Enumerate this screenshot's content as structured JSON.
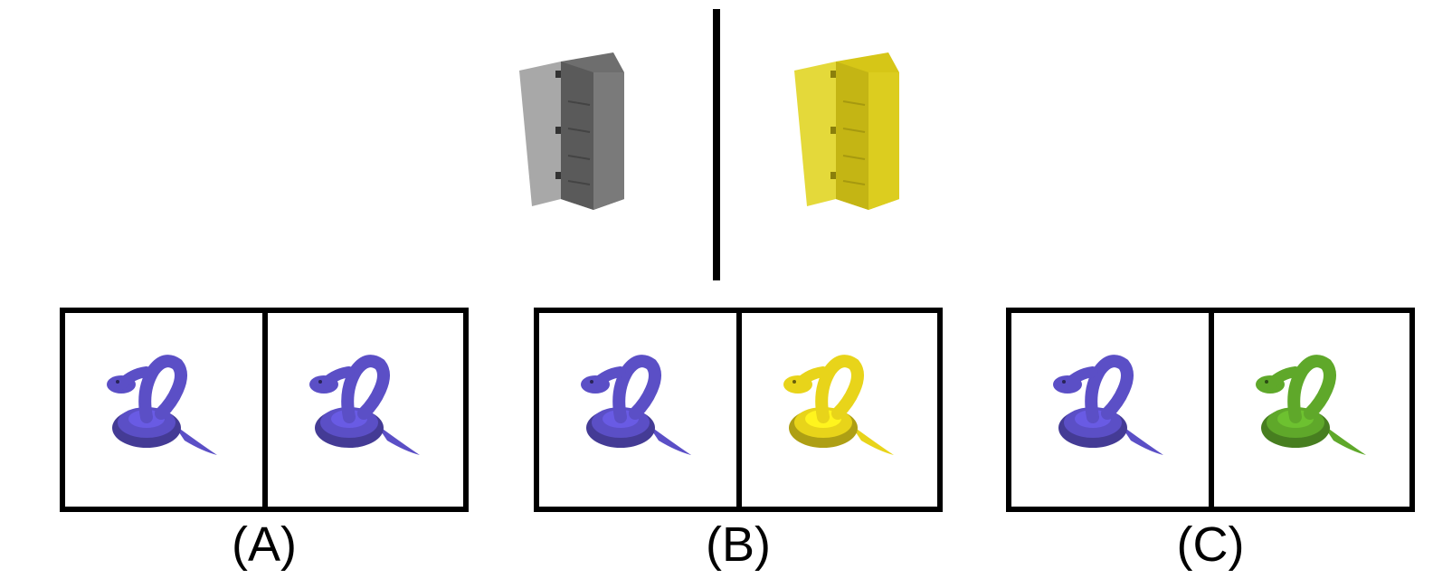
{
  "example": {
    "source_color": "#8c8c8c",
    "target_color": "#e6d81a",
    "object_icon": "cabinet-icon"
  },
  "options": [
    {
      "label": "(A)",
      "left_color": "#5b4fc6",
      "right_color": "#5b4fc6",
      "object_icon": "snake-icon"
    },
    {
      "label": "(B)",
      "left_color": "#5b4fc6",
      "right_color": "#e8d41a",
      "object_icon": "snake-icon"
    },
    {
      "label": "(C)",
      "left_color": "#5b4fc6",
      "right_color": "#5fa82a",
      "object_icon": "snake-icon"
    }
  ]
}
